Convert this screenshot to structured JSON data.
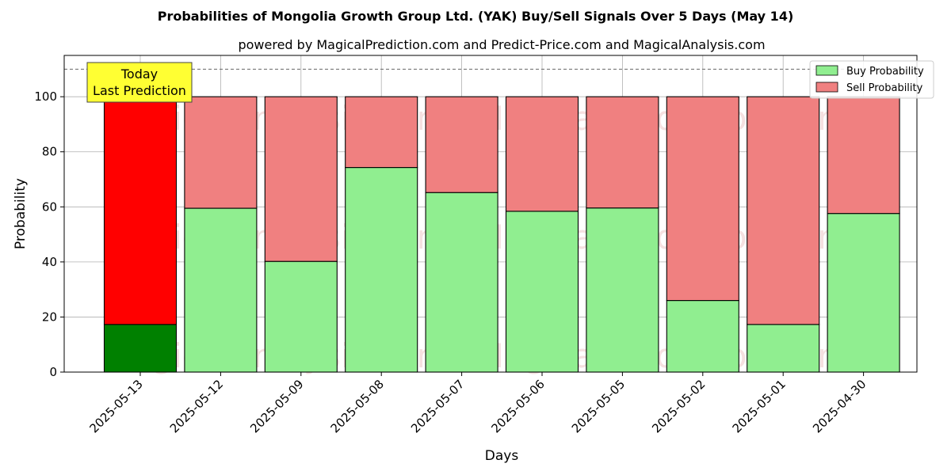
{
  "chart_data": {
    "type": "bar",
    "stacked": true,
    "title": "Probabilities of Mongolia Growth Group Ltd. (YAK) Buy/Sell Signals Over 5 Days (May 14)",
    "subtitle": "powered by MagicalPrediction.com and Predict-Price.com and MagicalAnalysis.com",
    "xlabel": "Days",
    "ylabel": "Probability",
    "ylim": [
      0,
      115
    ],
    "yticks": [
      0,
      20,
      40,
      60,
      80,
      100
    ],
    "grid": true,
    "legend_position": "top-right",
    "reference_line": {
      "y": 110,
      "style": "dashed"
    },
    "categories": [
      "2025-05-13",
      "2025-05-12",
      "2025-05-09",
      "2025-05-08",
      "2025-05-07",
      "2025-05-06",
      "2025-05-05",
      "2025-05-02",
      "2025-05-01",
      "2025-04-30"
    ],
    "series": [
      {
        "name": "Buy Probability",
        "values": [
          17.3,
          59.5,
          40.2,
          74.3,
          65.2,
          58.4,
          59.6,
          26.0,
          17.3,
          57.6
        ]
      },
      {
        "name": "Sell Probability",
        "values": [
          82.7,
          40.5,
          59.8,
          25.7,
          34.8,
          41.6,
          40.4,
          74.0,
          82.7,
          42.4
        ]
      }
    ],
    "colors": {
      "buy": "#90ee90",
      "sell": "#f08080",
      "buy_highlight": "#008000",
      "sell_highlight": "#ff0000",
      "annotation_bg": "#ffff33"
    },
    "highlight_index": 0,
    "annotation": {
      "line1": "Today",
      "line2": "Last Prediction"
    },
    "watermarks": [
      "MagicalAnalysis.com",
      "MagicalPrediction.com"
    ]
  }
}
